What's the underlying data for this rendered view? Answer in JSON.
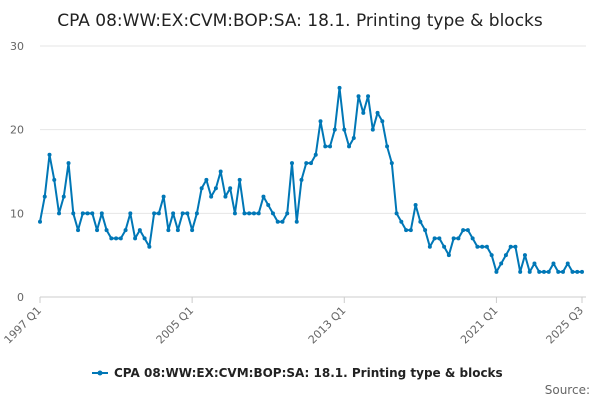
{
  "chart_data": {
    "type": "line",
    "title": "CPA 08:WW:EX:CVM:BOP:SA: 18.1. Printing type & blocks",
    "xlabel": "",
    "ylabel": "",
    "ylim": [
      0,
      30
    ],
    "yticks": [
      0,
      10,
      20,
      30
    ],
    "xtick_labels": [
      "1997 Q1",
      "2005 Q1",
      "2013 Q1",
      "2021 Q1",
      "2025 Q3"
    ],
    "start_quarter": "1997 Q1",
    "series": [
      {
        "name": "CPA 08:WW:EX:CVM:BOP:SA: 18.1. Printing type & blocks",
        "color": "#0077b6",
        "values": [
          9,
          12,
          17,
          14,
          10,
          12,
          16,
          10,
          8,
          10,
          10,
          10,
          8,
          10,
          8,
          7,
          7,
          7,
          8,
          10,
          7,
          8,
          7,
          6,
          10,
          10,
          12,
          8,
          10,
          8,
          10,
          10,
          8,
          10,
          13,
          14,
          12,
          13,
          15,
          12,
          13,
          10,
          14,
          10,
          10,
          10,
          10,
          12,
          11,
          10,
          9,
          9,
          10,
          16,
          9,
          14,
          16,
          16,
          17,
          21,
          18,
          18,
          20,
          25,
          20,
          18,
          19,
          24,
          22,
          24,
          20,
          22,
          21,
          18,
          16,
          10,
          9,
          8,
          8,
          11,
          9,
          8,
          6,
          7,
          7,
          6,
          5,
          7,
          7,
          8,
          8,
          7,
          6,
          6,
          6,
          5,
          3,
          4,
          5,
          6,
          6,
          3,
          5,
          3,
          4,
          3,
          3,
          3,
          4,
          3,
          3,
          4,
          3,
          3,
          3
        ]
      }
    ],
    "legend_position": "bottom",
    "grid": true
  },
  "footer": {
    "source_label": "Source:"
  }
}
